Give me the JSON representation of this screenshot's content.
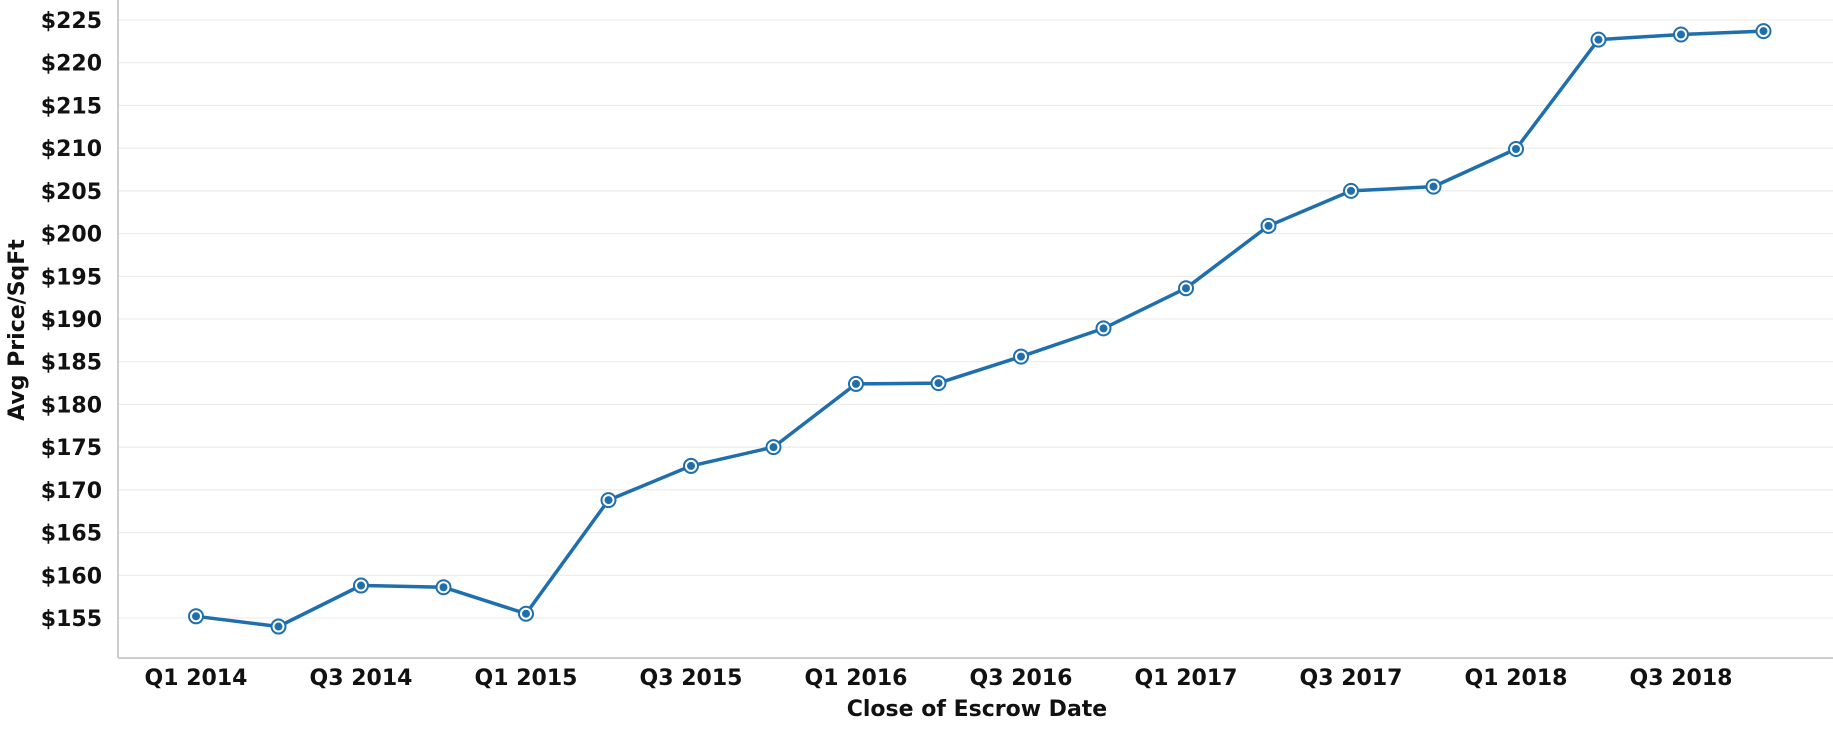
{
  "chart_data": {
    "type": "line",
    "title": "",
    "xlabel": "Close of Escrow Date",
    "ylabel": "Avg Price/SqFt",
    "y_tick_prefix": "$",
    "ylim": [
      150,
      225
    ],
    "y_ticks": [
      155,
      160,
      165,
      170,
      175,
      180,
      185,
      190,
      195,
      200,
      205,
      210,
      215,
      220,
      225
    ],
    "x_tick_labels": [
      "Q1 2014",
      "Q3 2014",
      "Q1 2015",
      "Q3 2015",
      "Q1 2016",
      "Q3 2016",
      "Q1 2017",
      "Q3 2017",
      "Q1 2018",
      "Q3 2018"
    ],
    "grid": "horizontal",
    "line_color": "#1f6fad",
    "series": [
      {
        "x": [
          "Q1 2014",
          "Q2 2014",
          "Q3 2014",
          "Q4 2014",
          "Q1 2015",
          "Q2 2015",
          "Q3 2015",
          "Q4 2015",
          "Q1 2016",
          "Q2 2016",
          "Q3 2016",
          "Q4 2016",
          "Q1 2017",
          "Q2 2017",
          "Q3 2017",
          "Q4 2017",
          "Q1 2018",
          "Q2 2018",
          "Q3 2018",
          "Q4 2018"
        ],
        "values": [
          155.2,
          154.0,
          158.8,
          158.6,
          155.5,
          168.8,
          172.8,
          175.0,
          182.4,
          182.5,
          185.6,
          188.9,
          193.6,
          200.9,
          205.0,
          205.5,
          209.9,
          222.7,
          223.3,
          223.7
        ]
      }
    ]
  }
}
